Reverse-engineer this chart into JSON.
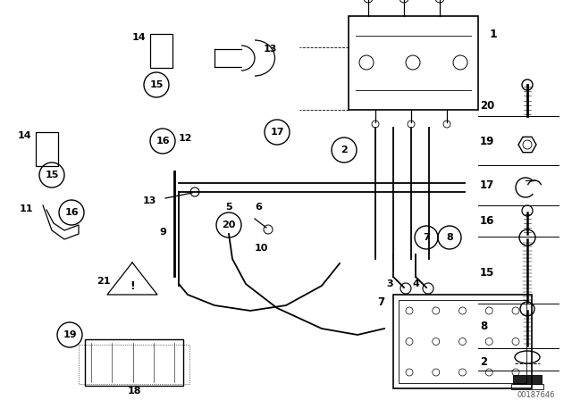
{
  "background_color": "#ffffff",
  "watermark": "00187646",
  "fig_width": 6.4,
  "fig_height": 4.48,
  "dpi": 100
}
